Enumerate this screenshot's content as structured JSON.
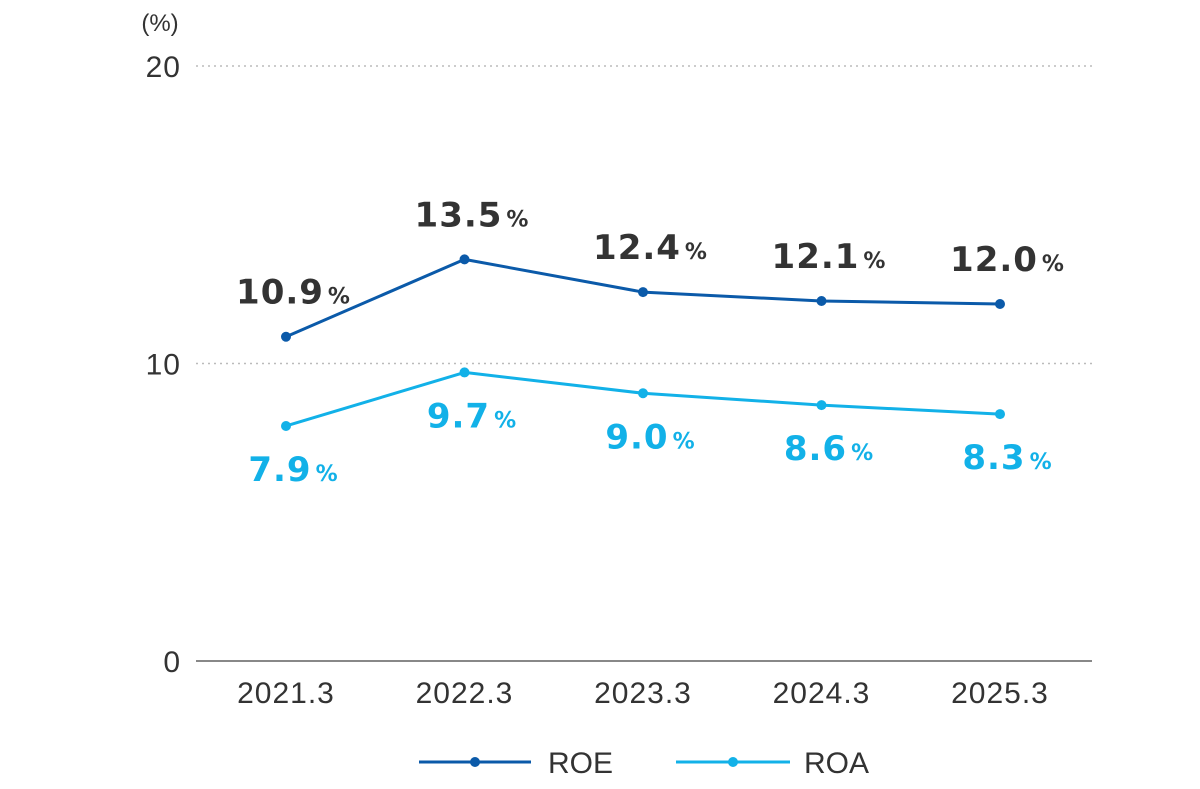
{
  "chart_data": {
    "type": "line",
    "unit_label": "(%)",
    "categories": [
      "2021.3",
      "2022.3",
      "2023.3",
      "2024.3",
      "2025.3"
    ],
    "ylim": [
      0,
      20
    ],
    "yticks": [
      0,
      10,
      20
    ],
    "grid": "dotted horizontal",
    "legend_position": "bottom-center",
    "value_suffix": "%",
    "series": [
      {
        "name": "ROE",
        "values": [
          10.9,
          13.5,
          12.4,
          12.1,
          12.0
        ],
        "labels": [
          "10.9",
          "13.5",
          "12.4",
          "12.1",
          "12.0"
        ],
        "color": "#0b5aa9",
        "label_color": "#333333",
        "label_placement": "above"
      },
      {
        "name": "ROA",
        "values": [
          7.9,
          9.7,
          9.0,
          8.6,
          8.3
        ],
        "labels": [
          "7.9",
          "9.7",
          "9.0",
          "8.6",
          "8.3"
        ],
        "color": "#12b1e8",
        "label_color": "#12b1e8",
        "label_placement": "below"
      }
    ],
    "gridline_color": "#bbbbbb",
    "axis_color": "#888888"
  }
}
